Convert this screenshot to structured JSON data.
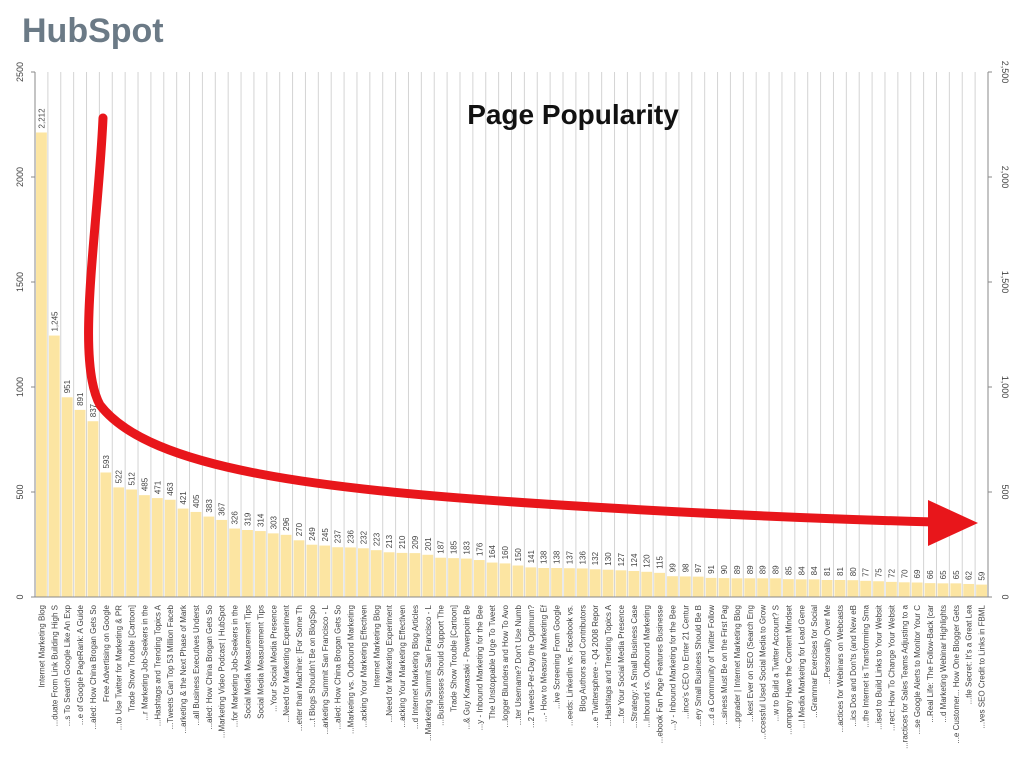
{
  "logo": "HubSpot",
  "chart_data": {
    "type": "bar",
    "title": "Page Popularity",
    "categories": [
      "Internet Marketing Blog",
      "...duate From Link Building High S",
      "...s To Search Google Like An Exp",
      "...e of Google PageRank: A Guide",
      "...aled: How China Brogan Gets So",
      "Free Advertising on Google",
      "...to Use Twitter for Marketing & PR",
      "Trade Show Trouble [Cartoon]",
      "...r Marketing Job-Seekers in the",
      "...Hashtags and Trending Topics A",
      "...Tweets Can Top 53 Million Faceb",
      "...arketing & the Next Phase of Mark",
      "...all Business Executives Underst",
      "...aled: How China Brogan Gets So",
      "...Marketing Video Podcast | HubSpot",
      "...for Marketing Job-Seekers in the",
      "Social Media Measurement Tips",
      "Social Media Measurement Tips",
      "...Your Social Media Presence",
      "...Need for Marketing Experiment",
      "...etter than Machine: [For Some Th",
      "...t Blogs Shouldn't Be on BlogSpo",
      "...arketing Summit San Francisco - L",
      "...aled: How China Brogan Gets So",
      "...Marketing vs. Outbound Marketing",
      "...acking Your Marketing Effectiven",
      "Internet Marketing Blog",
      "...Need for Marketing Experiment",
      "...acking Your Marketing Effectiven",
      "...d Internet Marketing Blog Articles",
      "...Marketing Summit San Francisco - L",
      "...Businesses Should Support The",
      "Trade Show Trouble [Cartoon]",
      "...& Guy Kawasaki - Powerpoint Be",
      "...y - Inbound Marketing for the Bee",
      "The Unstoppable Urge To Tweet",
      "...logger Blunders and How To Avo",
      "...ter Username? Don't Use Numb",
      "...2 Tweets-Per-Day the Optimum?",
      "...- How to Measure Marketing Ef",
      "...ive Screening From Google",
      "...eeds: LinkedIn vs. Facebook vs.",
      "Blog Authors and Contributors",
      "...e Twittersphere - Q4 2008 Repor",
      "...Hashtags and Trending Topics A",
      "...for Your Social Media Presence",
      "...Strategy: A Small Business Case",
      "...Inbound vs. Outbound Marketing",
      "...ebook Fan Page Features Businesse",
      "...y - Inbound Marketing for the Bee",
      "...ince's CEO to Enter 21 Centur",
      "...ery Small Business Should Be B",
      "...d a Community of Twitter Follow",
      "...siness Must Be on the First Pag",
      "...pgrader | Internet Marketing Blog",
      "...kest Ever on SEO (Search Eng",
      "...ccessful Used Social Media to Grow",
      "...w to Build a Twitter Account? S",
      "...ompany Have the Content Mindset",
      "...l Media Marketing for Lead Gene",
      "...Grammar Exercises for Social",
      "...Personality Over Me",
      "...actices for Webinars on Webcasts",
      "...ics Dos and Don'ts (and New eB",
      "...the Internet is Transforming Sma",
      "...ised to Build Links to Your Websit",
      "...rect: How To Change Your Websit",
      "...ractices for Sales Teams Adjusting to a",
      "...se Google Alerts to Monitor Your C",
      "...Real Life: The Follow-Back [car",
      "...d Marketing Webinar Highlights",
      "...e Customer... How One Blogger Gets",
      "...tle Secret: It's a Great Lea",
      "...ves SEO Credit to Links in FBML"
    ],
    "values": [
      2212,
      1245,
      951,
      891,
      837,
      593,
      522,
      512,
      485,
      471,
      463,
      421,
      405,
      383,
      367,
      326,
      319,
      314,
      303,
      296,
      270,
      249,
      245,
      237,
      236,
      232,
      223,
      213,
      210,
      209,
      201,
      187,
      185,
      183,
      176,
      164,
      160,
      150,
      141,
      138,
      138,
      137,
      136,
      132,
      130,
      127,
      124,
      120,
      115,
      99,
      98,
      97,
      91,
      90,
      89,
      89,
      89,
      89,
      85,
      84,
      84,
      81,
      81,
      80,
      77,
      75,
      72,
      70,
      69,
      66,
      65,
      65,
      62,
      59
    ],
    "value_labels": [
      "2,212",
      "1,245",
      "951",
      "891",
      "837",
      "593",
      "522",
      "512",
      "485",
      "471",
      "463",
      "421",
      "405",
      "383",
      "367",
      "326",
      "319",
      "314",
      "303",
      "296",
      "270",
      "249",
      "245",
      "237",
      "236",
      "232",
      "223",
      "213",
      "210",
      "209",
      "201",
      "187",
      "185",
      "183",
      "176",
      "164",
      "160",
      "150",
      "141",
      "138",
      "138",
      "137",
      "136",
      "132",
      "130",
      "127",
      "124",
      "120",
      "115",
      "99",
      "98",
      "97",
      "91",
      "90",
      "89",
      "89",
      "89",
      "89",
      "85",
      "84",
      "84",
      "81",
      "81",
      "80",
      "77",
      "75",
      "72",
      "70",
      "69",
      "66",
      "65",
      "65",
      "62",
      "59"
    ],
    "color": "#fce5a2",
    "ylim": [
      0,
      2500
    ],
    "yticks": [
      0,
      500,
      1000,
      1500,
      2000,
      2500
    ],
    "y2lim": [
      0,
      2500
    ],
    "y2ticks": [
      0,
      500,
      {
        "value": 1000,
        "label": "1,000"
      },
      {
        "value": 1500,
        "label": "1,500"
      },
      {
        "value": 2000,
        "label": "2,000"
      },
      {
        "value": 2500,
        "label": "2,500"
      }
    ]
  }
}
